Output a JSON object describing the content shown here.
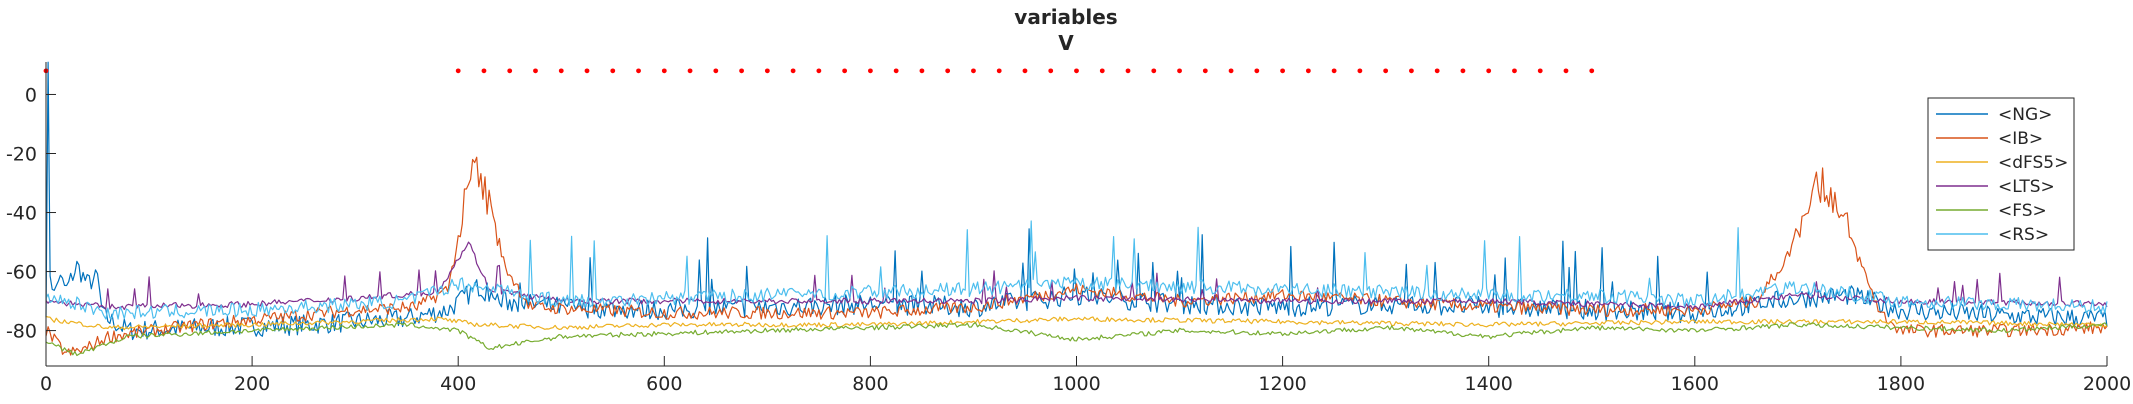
{
  "chart_data": {
    "type": "line",
    "title_lines": [
      "variables",
      "V"
    ],
    "xlabel": "",
    "ylabel": "",
    "xlim": [
      0,
      2000
    ],
    "ylim": [
      -92,
      11
    ],
    "x_ticks": [
      0,
      200,
      400,
      600,
      800,
      1000,
      1200,
      1400,
      1600,
      1800,
      2000
    ],
    "y_ticks": [
      0,
      -20,
      -40,
      -60,
      -80
    ],
    "grid": false,
    "legend_position": "top-right",
    "series": [
      {
        "name": "<NG>",
        "color": "#0072BD",
        "points": [
          [
            0,
            -72
          ],
          [
            2,
            8
          ],
          [
            4,
            -60
          ],
          [
            8,
            -68
          ],
          [
            12,
            -62
          ],
          [
            20,
            -66
          ],
          [
            30,
            -58
          ],
          [
            40,
            -64
          ],
          [
            50,
            -62
          ],
          [
            55,
            -75
          ],
          [
            80,
            -80
          ],
          [
            150,
            -79
          ],
          [
            250,
            -78
          ],
          [
            350,
            -76
          ],
          [
            390,
            -73
          ],
          [
            420,
            -65
          ],
          [
            440,
            -70
          ],
          [
            500,
            -72
          ],
          [
            600,
            -73
          ],
          [
            700,
            -72
          ],
          [
            800,
            -71
          ],
          [
            900,
            -72
          ],
          [
            1000,
            -68
          ],
          [
            1100,
            -71
          ],
          [
            1200,
            -72
          ],
          [
            1300,
            -71
          ],
          [
            1400,
            -72
          ],
          [
            1500,
            -73
          ],
          [
            1600,
            -74
          ],
          [
            1700,
            -69
          ],
          [
            1750,
            -68
          ],
          [
            1800,
            -73
          ],
          [
            1900,
            -75
          ],
          [
            2000,
            -76
          ]
        ]
      },
      {
        "name": "<IB>",
        "color": "#D95319",
        "points": [
          [
            0,
            -80
          ],
          [
            20,
            -88
          ],
          [
            40,
            -86
          ],
          [
            60,
            -82
          ],
          [
            150,
            -78
          ],
          [
            300,
            -73
          ],
          [
            360,
            -72
          ],
          [
            390,
            -66
          ],
          [
            405,
            -40
          ],
          [
            415,
            -24
          ],
          [
            430,
            -36
          ],
          [
            445,
            -58
          ],
          [
            470,
            -72
          ],
          [
            600,
            -74
          ],
          [
            800,
            -74
          ],
          [
            900,
            -72
          ],
          [
            1000,
            -66
          ],
          [
            1100,
            -70
          ],
          [
            1200,
            -68
          ],
          [
            1300,
            -70
          ],
          [
            1400,
            -72
          ],
          [
            1500,
            -73
          ],
          [
            1600,
            -73
          ],
          [
            1660,
            -70
          ],
          [
            1690,
            -55
          ],
          [
            1715,
            -30
          ],
          [
            1735,
            -34
          ],
          [
            1755,
            -52
          ],
          [
            1780,
            -74
          ],
          [
            1800,
            -80
          ],
          [
            1900,
            -80
          ],
          [
            2000,
            -79
          ]
        ]
      },
      {
        "name": "<dFS5>",
        "color": "#EDB120",
        "points": [
          [
            0,
            -76
          ],
          [
            60,
            -79
          ],
          [
            200,
            -78
          ],
          [
            380,
            -76
          ],
          [
            420,
            -78
          ],
          [
            500,
            -79
          ],
          [
            600,
            -78
          ],
          [
            800,
            -78
          ],
          [
            1000,
            -76
          ],
          [
            1200,
            -77
          ],
          [
            1400,
            -78
          ],
          [
            1600,
            -77
          ],
          [
            1800,
            -77
          ],
          [
            2000,
            -78
          ]
        ]
      },
      {
        "name": "<LTS>",
        "color": "#7E2F8E",
        "points": [
          [
            0,
            -70
          ],
          [
            60,
            -72
          ],
          [
            200,
            -71
          ],
          [
            300,
            -69
          ],
          [
            380,
            -67
          ],
          [
            410,
            -50
          ],
          [
            430,
            -66
          ],
          [
            500,
            -70
          ],
          [
            700,
            -70
          ],
          [
            900,
            -70
          ],
          [
            1000,
            -69
          ],
          [
            1200,
            -70
          ],
          [
            1400,
            -70
          ],
          [
            1600,
            -72
          ],
          [
            1700,
            -68
          ],
          [
            1800,
            -70
          ],
          [
            2000,
            -71
          ]
        ]
      },
      {
        "name": "<FS>",
        "color": "#77AC30",
        "points": [
          [
            0,
            -84
          ],
          [
            30,
            -88
          ],
          [
            80,
            -82
          ],
          [
            200,
            -80
          ],
          [
            350,
            -78
          ],
          [
            400,
            -80
          ],
          [
            430,
            -86
          ],
          [
            500,
            -82
          ],
          [
            700,
            -80
          ],
          [
            900,
            -78
          ],
          [
            1000,
            -83
          ],
          [
            1100,
            -80
          ],
          [
            1200,
            -81
          ],
          [
            1300,
            -79
          ],
          [
            1400,
            -82
          ],
          [
            1500,
            -79
          ],
          [
            1600,
            -80
          ],
          [
            1700,
            -78
          ],
          [
            1800,
            -79
          ],
          [
            1900,
            -80
          ],
          [
            2000,
            -78
          ]
        ]
      },
      {
        "name": "<RS>",
        "color": "#4DBEEE",
        "points": [
          [
            0,
            -68
          ],
          [
            60,
            -74
          ],
          [
            200,
            -73
          ],
          [
            350,
            -70
          ],
          [
            400,
            -64
          ],
          [
            440,
            -66
          ],
          [
            500,
            -70
          ],
          [
            700,
            -68
          ],
          [
            900,
            -66
          ],
          [
            1000,
            -64
          ],
          [
            1200,
            -66
          ],
          [
            1400,
            -68
          ],
          [
            1500,
            -68
          ],
          [
            1600,
            -70
          ],
          [
            1700,
            -65
          ],
          [
            1800,
            -70
          ],
          [
            2000,
            -72
          ]
        ]
      }
    ],
    "markers": {
      "color": "#FF0000",
      "y": 8,
      "x_start": 400,
      "x_end": 1500,
      "step": 25,
      "extra_x": [
        0
      ]
    }
  }
}
